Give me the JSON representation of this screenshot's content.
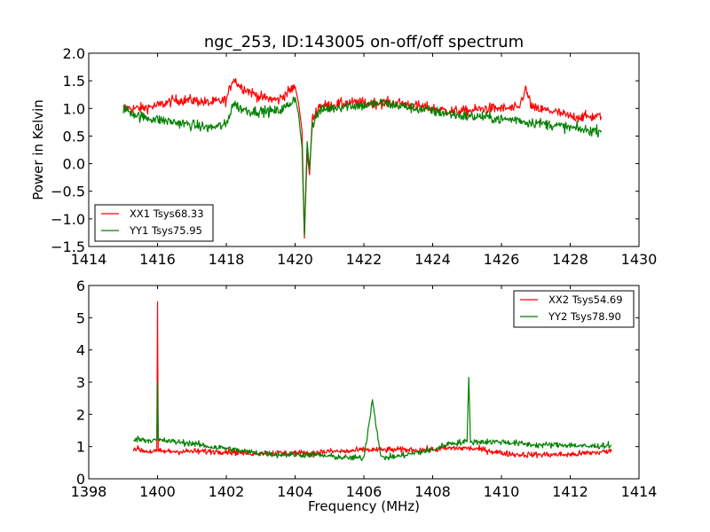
{
  "figure_title": "ngc_253, ID:143005 on-off/off spectrum",
  "chart_data": [
    {
      "type": "line",
      "panel": "top",
      "title": "ngc_253, ID:143005 on-off/off spectrum",
      "xlabel": "",
      "ylabel": "Power in Kelvin",
      "xlim": [
        1414,
        1430
      ],
      "ylim": [
        -1.5,
        2.0
      ],
      "xticks": [
        1414,
        1416,
        1418,
        1420,
        1422,
        1424,
        1426,
        1428,
        1430
      ],
      "xtick_labels": [
        "1414",
        "1416",
        "1418",
        "1420",
        "1422",
        "1424",
        "1426",
        "1428",
        "1430"
      ],
      "yticks": [
        -1.5,
        -1.0,
        -0.5,
        0.0,
        0.5,
        1.0,
        1.5,
        2.0
      ],
      "ytick_labels": [
        "−1.5",
        "−1.0",
        "−0.5",
        "0.0",
        "0.5",
        "1.0",
        "1.5",
        "2.0"
      ],
      "grid": false,
      "legend_position": "lower-left",
      "series": [
        {
          "name": "XX1 Tsys68.33",
          "color": "#ff0000",
          "x": [
            1415.0,
            1415.5,
            1416.0,
            1416.5,
            1417.0,
            1417.5,
            1418.0,
            1418.2,
            1418.4,
            1418.7,
            1419.0,
            1419.5,
            1419.8,
            1420.0,
            1420.1,
            1420.2,
            1420.27,
            1420.35,
            1420.42,
            1420.5,
            1420.7,
            1421.0,
            1421.5,
            1422.0,
            1422.5,
            1423.0,
            1423.5,
            1424.0,
            1424.5,
            1425.0,
            1425.5,
            1426.0,
            1426.5,
            1426.7,
            1426.9,
            1427.5,
            1428.0,
            1428.5,
            1428.9
          ],
          "y": [
            1.0,
            1.0,
            1.05,
            1.15,
            1.15,
            1.1,
            1.15,
            1.55,
            1.4,
            1.3,
            1.2,
            1.15,
            1.3,
            1.4,
            1.1,
            0.6,
            -1.35,
            0.2,
            -0.2,
            0.8,
            1.05,
            1.05,
            1.1,
            1.1,
            1.1,
            1.1,
            1.05,
            1.0,
            0.95,
            0.95,
            1.0,
            1.0,
            1.0,
            1.35,
            1.0,
            0.95,
            0.85,
            0.85,
            0.85
          ]
        },
        {
          "name": "YY1 Tsys75.95",
          "color": "#008000",
          "x": [
            1415.0,
            1415.5,
            1416.0,
            1416.5,
            1417.0,
            1417.5,
            1418.0,
            1418.2,
            1418.4,
            1418.7,
            1419.0,
            1419.5,
            1419.8,
            1420.0,
            1420.1,
            1420.2,
            1420.27,
            1420.35,
            1420.42,
            1420.5,
            1420.7,
            1421.0,
            1421.5,
            1422.0,
            1422.5,
            1423.0,
            1423.5,
            1424.0,
            1424.5,
            1425.0,
            1425.5,
            1426.0,
            1426.5,
            1426.7,
            1426.9,
            1427.5,
            1428.0,
            1428.5,
            1428.9
          ],
          "y": [
            1.0,
            0.85,
            0.8,
            0.75,
            0.7,
            0.65,
            0.7,
            1.1,
            1.0,
            0.95,
            0.95,
            0.95,
            1.05,
            1.2,
            0.9,
            0.3,
            -1.3,
            0.4,
            -0.1,
            0.7,
            0.95,
            1.0,
            1.05,
            1.05,
            1.1,
            1.05,
            1.0,
            0.95,
            0.9,
            0.85,
            0.85,
            0.8,
            0.8,
            0.75,
            0.75,
            0.7,
            0.65,
            0.6,
            0.6
          ]
        }
      ]
    },
    {
      "type": "line",
      "panel": "bottom",
      "title": "",
      "xlabel": "Frequency (MHz)",
      "ylabel": "",
      "xlim": [
        1398,
        1414
      ],
      "ylim": [
        0,
        6
      ],
      "xticks": [
        1398,
        1400,
        1402,
        1404,
        1406,
        1408,
        1410,
        1412,
        1414
      ],
      "xtick_labels": [
        "1398",
        "1400",
        "1402",
        "1404",
        "1406",
        "1408",
        "1410",
        "1412",
        "1414"
      ],
      "yticks": [
        0,
        1,
        2,
        3,
        4,
        5,
        6
      ],
      "ytick_labels": [
        "0",
        "1",
        "2",
        "3",
        "4",
        "5",
        "6"
      ],
      "grid": false,
      "legend_position": "upper-right",
      "series": [
        {
          "name": "XX2 Tsys54.69",
          "color": "#ff0000",
          "x": [
            1399.3,
            1399.7,
            1399.98,
            1400.0,
            1400.02,
            1400.5,
            1401.0,
            1401.5,
            1402.0,
            1402.5,
            1403.0,
            1403.5,
            1404.0,
            1404.5,
            1405.0,
            1405.5,
            1406.0,
            1406.25,
            1406.5,
            1407.0,
            1407.5,
            1408.0,
            1408.5,
            1409.0,
            1409.5,
            1410.0,
            1410.5,
            1411.0,
            1411.5,
            1412.0,
            1412.5,
            1413.2
          ],
          "y": [
            0.95,
            0.85,
            0.85,
            5.5,
            0.85,
            0.85,
            0.85,
            0.85,
            0.85,
            0.8,
            0.8,
            0.8,
            0.8,
            0.8,
            0.85,
            0.85,
            0.9,
            0.9,
            0.9,
            0.9,
            0.9,
            0.9,
            0.95,
            0.95,
            0.9,
            0.8,
            0.75,
            0.75,
            0.75,
            0.75,
            0.8,
            0.85
          ]
        },
        {
          "name": "YY2 Tsys78.90",
          "color": "#008000",
          "x": [
            1399.3,
            1399.7,
            1399.98,
            1400.0,
            1400.02,
            1400.5,
            1401.0,
            1401.5,
            1402.0,
            1402.5,
            1403.0,
            1403.5,
            1404.0,
            1404.5,
            1405.0,
            1405.5,
            1406.0,
            1406.25,
            1406.5,
            1407.0,
            1407.5,
            1408.0,
            1408.5,
            1409.0,
            1409.05,
            1409.1,
            1409.5,
            1410.0,
            1410.5,
            1411.0,
            1411.5,
            1412.0,
            1412.5,
            1413.2
          ],
          "y": [
            1.25,
            1.2,
            1.2,
            3.0,
            1.2,
            1.15,
            1.1,
            1.0,
            0.95,
            0.85,
            0.8,
            0.75,
            0.75,
            0.75,
            0.7,
            0.65,
            0.65,
            2.45,
            0.65,
            0.7,
            0.8,
            0.9,
            1.1,
            1.15,
            3.15,
            1.15,
            1.15,
            1.15,
            1.1,
            1.05,
            1.05,
            1.05,
            1.0,
            1.05
          ]
        }
      ]
    }
  ]
}
